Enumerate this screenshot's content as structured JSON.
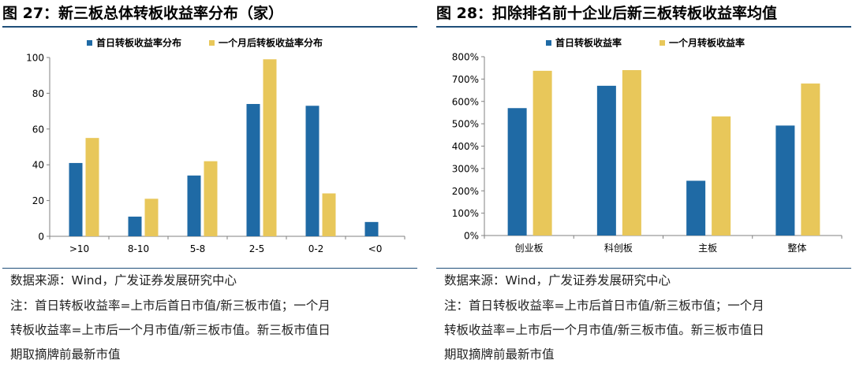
{
  "left": {
    "title": "图 27：新三板总体转板收益率分布（家）",
    "source": "数据来源：Wind，广发证券发展研究中心",
    "note_lines": [
      "注：首日转板收益率=上市后首日市值/新三板市值；一个月",
      "转板收益率=上市后一个月市值/新三板市值。新三板市值日",
      "期取摘牌前最新市值"
    ]
  },
  "right": {
    "title": "图 28：扣除排名前十企业后新三板转板收益率均值",
    "source": "数据来源：Wind，广发证券发展研究中心",
    "note_lines": [
      "注：首日转板收益率=上市后首日市值/新三板市值；一个月",
      "转板收益率=上市后一个月市值/新三板市值。新三板市值日",
      "期取摘牌前最新市值"
    ]
  },
  "colors": {
    "series1": "#1f6aa5",
    "series2": "#e8c75a",
    "rule": "#1f4e79"
  },
  "chart_data": [
    {
      "type": "bar",
      "categories": [
        ">10",
        "8-10",
        "5-8",
        "2-5",
        "0-2",
        "<0"
      ],
      "series": [
        {
          "name": "首日转板收益率分布",
          "values": [
            41,
            11,
            34,
            74,
            73,
            8
          ]
        },
        {
          "name": "一个月后转板收益率分布",
          "values": [
            55,
            21,
            42,
            99,
            24,
            0
          ]
        }
      ],
      "ylim": [
        0,
        100
      ],
      "yticks": [
        0,
        20,
        40,
        60,
        80,
        100
      ],
      "ytick_labels": [
        "0",
        "20",
        "40",
        "60",
        "80",
        "100"
      ],
      "legend": "top",
      "grid": false
    },
    {
      "type": "bar",
      "categories": [
        "创业板",
        "科创板",
        "主板",
        "整体"
      ],
      "series": [
        {
          "name": "首日转板收益率",
          "values": [
            570,
            670,
            245,
            492
          ]
        },
        {
          "name": "一个月转板收益率",
          "values": [
            737,
            740,
            533,
            680
          ]
        }
      ],
      "ylim": [
        0,
        800
      ],
      "yticks": [
        0,
        100,
        200,
        300,
        400,
        500,
        600,
        700,
        800
      ],
      "ytick_labels": [
        "0%",
        "100%",
        "200%",
        "300%",
        "400%",
        "500%",
        "600%",
        "700%",
        "800%"
      ],
      "legend": "top",
      "grid": false
    }
  ]
}
